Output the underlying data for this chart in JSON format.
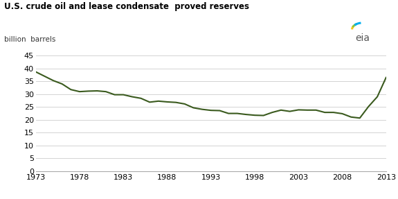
{
  "title": "U.S. crude oil and lease condensate  proved reserves",
  "ylabel": "billion  barrels",
  "line_color": "#3a5a1e",
  "background_color": "#ffffff",
  "grid_color": "#cccccc",
  "ylim": [
    0,
    45
  ],
  "yticks": [
    0,
    5,
    10,
    15,
    20,
    25,
    30,
    35,
    40,
    45
  ],
  "xlim": [
    1973,
    2013
  ],
  "xticks": [
    1973,
    1978,
    1983,
    1988,
    1993,
    1998,
    2003,
    2008,
    2013
  ],
  "years": [
    1973,
    1974,
    1975,
    1976,
    1977,
    1978,
    1979,
    1980,
    1981,
    1982,
    1983,
    1984,
    1985,
    1986,
    1987,
    1988,
    1989,
    1990,
    1991,
    1992,
    1993,
    1994,
    1995,
    1996,
    1997,
    1998,
    1999,
    2000,
    2001,
    2002,
    2003,
    2004,
    2005,
    2006,
    2007,
    2008,
    2009,
    2010,
    2011,
    2012,
    2013
  ],
  "values": [
    38.7,
    37.0,
    35.3,
    34.0,
    31.8,
    31.0,
    31.2,
    31.3,
    31.0,
    29.8,
    29.8,
    29.0,
    28.4,
    26.9,
    27.3,
    27.0,
    26.8,
    26.2,
    24.7,
    24.1,
    23.7,
    23.6,
    22.5,
    22.5,
    22.1,
    21.8,
    21.7,
    22.9,
    23.8,
    23.3,
    23.9,
    23.8,
    23.8,
    22.9,
    22.9,
    22.4,
    21.1,
    20.7,
    25.2,
    29.0,
    36.5
  ]
}
